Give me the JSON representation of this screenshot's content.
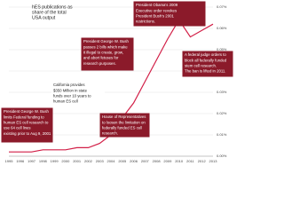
{
  "chart_data": {
    "type": "line",
    "title_lines": [
      "hES publications as",
      "share of the total",
      "USA output"
    ],
    "x": [
      1995,
      1996,
      1997,
      1998,
      1999,
      2000,
      2001,
      2002,
      2003,
      2004,
      2005,
      2006,
      2007,
      2008,
      2009,
      2010,
      2011,
      2012,
      2013
    ],
    "series": [
      {
        "color": "#d21f47",
        "values": [
          0.002,
          0.002,
          0.002,
          0.003,
          0.003,
          0.003,
          0.004,
          0.004,
          0.006,
          0.01,
          0.018,
          0.025,
          0.035,
          0.045,
          0.055,
          0.064,
          0.056,
          0.059,
          0.062
        ]
      }
    ],
    "xlim": [
      1995,
      2013
    ],
    "ylim": [
      0,
      0.07
    ],
    "yticks": [
      {
        "value": 0,
        "label": "0.00%"
      },
      {
        "value": 0.01,
        "label": "0.01%"
      },
      {
        "value": 0.02,
        "label": "0.02%"
      },
      {
        "value": 0.03,
        "label": "0.03%"
      },
      {
        "value": 0.04,
        "label": "0.04%"
      },
      {
        "value": 0.05,
        "label": "0.05%"
      },
      {
        "value": 0.06,
        "label": "0.06%"
      },
      {
        "value": 0.07,
        "label": "0.07%"
      }
    ],
    "grid": true,
    "annotations": [
      {
        "lines": [
          "President Obama's 2009",
          "Executive order revokes",
          "President Bush's 2001",
          "restrictions."
        ]
      },
      {
        "lines": [
          "President George W. Bush",
          "passes 2 bills which make",
          "it illegal to create, grow,",
          "and abort fetuses for",
          "research purposes."
        ]
      },
      {
        "lines": [
          "A federal judge orders to",
          "block all federally funded",
          "stem cell research.",
          "The ban is lifted in 2011."
        ]
      },
      {
        "lines": [
          "California provides",
          "$350 Million in state",
          "funds over 10 years to",
          "human ES cell"
        ]
      },
      {
        "lines": [
          "House of Representatives",
          "to loosen the limitation on",
          "federally funded ES cell",
          "research."
        ]
      },
      {
        "lines": [
          "President George W. Bush",
          "limits Federal funding to",
          "human ES cell research to",
          "use 64 cell lines",
          "existing prior to Aug 9, 2001"
        ]
      }
    ]
  }
}
